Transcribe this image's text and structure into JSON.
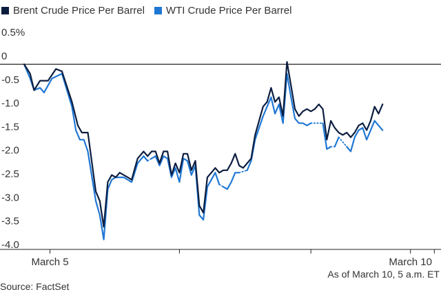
{
  "colors": {
    "brent": "#0b1d3f",
    "wti": "#1f77d4",
    "axis": "#222222",
    "grid": "#999999"
  },
  "legend": [
    {
      "label": "Brent Crude Price Per Barrel",
      "color": "#0b1d3f"
    },
    {
      "label": "WTI Crude Price Per Barrel",
      "color": "#1f77d4"
    }
  ],
  "source": "Source: FactSet",
  "as_of": "As of March 10, 5 a.m. ET",
  "chart_data": {
    "type": "line",
    "title": "",
    "xlabel": "",
    "ylabel": "",
    "ylim": [
      -4.0,
      0.5
    ],
    "yticks": [
      0.5,
      0,
      -0.5,
      -1.0,
      -1.5,
      -2.0,
      -2.5,
      -3.0,
      -3.5,
      -4.0
    ],
    "ytick_labels": [
      "0.5%",
      "0",
      "-0.5",
      "-1.0",
      "-1.5",
      "-2.0",
      "-2.5",
      "-3.0",
      "-3.5",
      "-4.0"
    ],
    "xlim": [
      0,
      100
    ],
    "xtick_labels": [
      {
        "x": 6.5,
        "label": "March 5"
      },
      {
        "x": 39,
        "label": ""
      },
      {
        "x": 72,
        "label": ""
      },
      {
        "x": 97,
        "label": "March 10"
      },
      {
        "x": 103,
        "label": ""
      }
    ],
    "series": [
      {
        "name": "Brent Crude Price Per Barrel",
        "color": "#0b1d3f",
        "segments": [
          {
            "style": "solid",
            "points": [
              [
                0,
                0
              ],
              [
                1.5,
                -0.2
              ],
              [
                2.5,
                -0.55
              ],
              [
                4,
                -0.35
              ],
              [
                6,
                -0.35
              ],
              [
                8,
                -0.1
              ],
              [
                9.5,
                -0.15
              ],
              [
                12,
                -0.8
              ],
              [
                13.5,
                -1.3
              ],
              [
                14.5,
                -1.45
              ],
              [
                16,
                -1.45
              ],
              [
                18,
                -2.7
              ],
              [
                19,
                -2.9
              ],
              [
                20,
                -3.45
              ],
              [
                21,
                -2.5
              ],
              [
                22,
                -2.35
              ],
              [
                23,
                -2.4
              ],
              [
                24,
                -2.3
              ],
              [
                25,
                -2.35
              ],
              [
                26,
                -2.4
              ],
              [
                27,
                -2.45
              ],
              [
                28.5,
                -2.0
              ],
              [
                30,
                -1.85
              ],
              [
                31,
                -1.95
              ],
              [
                32,
                -1.85
              ],
              [
                33,
                -1.85
              ],
              [
                34,
                -2.1
              ],
              [
                35,
                -1.85
              ],
              [
                36,
                -1.85
              ],
              [
                37,
                -2.35
              ],
              [
                38,
                -2.1
              ],
              [
                39,
                -2.3
              ],
              [
                40,
                -1.9
              ],
              [
                41,
                -1.9
              ],
              [
                42,
                -2.25
              ],
              [
                43,
                -2.05
              ],
              [
                44,
                -3.0
              ],
              [
                45,
                -3.15
              ],
              [
                46,
                -2.4
              ],
              [
                47,
                -2.3
              ],
              [
                48,
                -2.2
              ],
              [
                49,
                -2.3
              ],
              [
                50,
                -2.25
              ],
              [
                51,
                -2.25
              ],
              [
                52,
                -2.1
              ],
              [
                53,
                -1.9
              ],
              [
                54,
                -2.15
              ],
              [
                55,
                -2.2
              ],
              [
                56,
                -2.1
              ],
              [
                57,
                -2.0
              ],
              [
                58,
                -1.5
              ],
              [
                59,
                -1.2
              ],
              [
                60,
                -0.9
              ],
              [
                61,
                -0.8
              ],
              [
                62,
                -0.5
              ],
              [
                63,
                -0.8
              ],
              [
                64,
                -0.7
              ],
              [
                65,
                -1.1
              ],
              [
                66,
                0.05
              ],
              [
                67,
                -0.45
              ],
              [
                68,
                -0.95
              ],
              [
                69,
                -1.1
              ],
              [
                70,
                -1.0
              ],
              [
                71,
                -0.95
              ],
              [
                72,
                -1.0
              ],
              [
                73,
                -0.95
              ],
              [
                74,
                -0.85
              ],
              [
                75,
                -0.95
              ],
              [
                76,
                -1.6
              ],
              [
                77,
                -1.2
              ],
              [
                78,
                -1.35
              ],
              [
                79,
                -1.45
              ],
              [
                80,
                -1.5
              ],
              [
                81,
                -1.45
              ],
              [
                82,
                -1.55
              ],
              [
                83,
                -1.45
              ],
              [
                84,
                -1.3
              ],
              [
                85,
                -1.25
              ],
              [
                86,
                -1.4
              ],
              [
                87,
                -1.2
              ],
              [
                88,
                -0.9
              ],
              [
                89,
                -1.05
              ],
              [
                90,
                -0.85
              ]
            ]
          }
        ]
      },
      {
        "name": "WTI Crude Price Per Barrel",
        "color": "#1f77d4",
        "segments": [
          {
            "style": "solid",
            "points": [
              [
                0,
                0
              ],
              [
                1.5,
                -0.3
              ],
              [
                2.5,
                -0.55
              ],
              [
                4,
                -0.5
              ],
              [
                5,
                -0.6
              ],
              [
                7,
                -0.3
              ],
              [
                9.5,
                -0.2
              ],
              [
                12,
                -0.9
              ],
              [
                13,
                -1.4
              ],
              [
                14,
                -1.6
              ],
              [
                15,
                -1.6
              ],
              [
                16,
                -1.85
              ],
              [
                18,
                -2.9
              ],
              [
                19,
                -3.2
              ],
              [
                20,
                -3.72
              ],
              [
                21,
                -2.65
              ],
              [
                22,
                -2.45
              ],
              [
                23,
                -2.4
              ],
              [
                24,
                -2.4
              ],
              [
                25,
                -2.4
              ],
              [
                26,
                -2.45
              ],
              [
                27,
                -2.5
              ],
              [
                28.5,
                -2.1
              ],
              [
                30,
                -1.95
              ],
              [
                31,
                -2.05
              ]
            ]
          },
          {
            "style": "dotted",
            "points": [
              [
                31,
                -2.05
              ],
              [
                32,
                -2.0
              ]
            ]
          },
          {
            "style": "solid",
            "points": [
              [
                32,
                -2.0
              ],
              [
                33,
                -1.95
              ],
              [
                34,
                -2.15
              ],
              [
                35,
                -1.95
              ],
              [
                36,
                -2.0
              ],
              [
                37,
                -2.4
              ],
              [
                38,
                -2.2
              ],
              [
                39,
                -2.5
              ],
              [
                40,
                -2.0
              ],
              [
                41,
                -2.05
              ],
              [
                42,
                -2.35
              ],
              [
                43,
                -2.15
              ],
              [
                44,
                -3.2
              ],
              [
                45,
                -3.3
              ],
              [
                46,
                -2.6
              ],
              [
                47,
                -2.45
              ],
              [
                48,
                -2.3
              ],
              [
                49,
                -2.55
              ]
            ]
          },
          {
            "style": "dotted",
            "points": [
              [
                49,
                -2.55
              ],
              [
                50,
                -2.6
              ]
            ]
          },
          {
            "style": "solid",
            "points": [
              [
                50,
                -2.6
              ],
              [
                51,
                -2.65
              ],
              [
                52,
                -2.5
              ],
              [
                53,
                -2.3
              ],
              [
                54,
                -2.3
              ]
            ]
          },
          {
            "style": "dotted",
            "points": [
              [
                54,
                -2.3
              ],
              [
                56,
                -2.25
              ]
            ]
          },
          {
            "style": "solid",
            "points": [
              [
                56,
                -2.25
              ],
              [
                57,
                -2.05
              ],
              [
                58,
                -1.6
              ],
              [
                59,
                -1.35
              ],
              [
                60,
                -1.1
              ],
              [
                61,
                -0.9
              ],
              [
                62,
                -0.7
              ],
              [
                63,
                -1.05
              ],
              [
                64,
                -0.85
              ],
              [
                65,
                -1.25
              ],
              [
                66,
                -0.2
              ],
              [
                67,
                -0.7
              ],
              [
                68,
                -1.15
              ],
              [
                69,
                -1.25
              ],
              [
                70,
                -1.25
              ],
              [
                71,
                -1.3
              ],
              [
                72,
                -1.25
              ]
            ]
          },
          {
            "style": "dotted",
            "points": [
              [
                72,
                -1.25
              ],
              [
                75,
                -1.25
              ]
            ]
          },
          {
            "style": "solid",
            "points": [
              [
                75,
                -1.25
              ],
              [
                76,
                -1.8
              ],
              [
                77,
                -1.75
              ]
            ]
          },
          {
            "style": "dotted",
            "points": [
              [
                77,
                -1.75
              ],
              [
                78,
                -1.75
              ]
            ]
          },
          {
            "style": "solid",
            "points": [
              [
                78,
                -1.75
              ],
              [
                79,
                -1.55
              ]
            ]
          },
          {
            "style": "dotted",
            "points": [
              [
                79,
                -1.55
              ],
              [
                81,
                -1.75
              ]
            ]
          },
          {
            "style": "solid",
            "points": [
              [
                81,
                -1.75
              ],
              [
                82,
                -1.85
              ],
              [
                83,
                -1.55
              ],
              [
                84,
                -1.4
              ],
              [
                85,
                -1.35
              ],
              [
                86,
                -1.6
              ],
              [
                87,
                -1.4
              ],
              [
                88,
                -1.2
              ],
              [
                89,
                -1.3
              ],
              [
                90,
                -1.4
              ]
            ]
          }
        ]
      }
    ]
  }
}
